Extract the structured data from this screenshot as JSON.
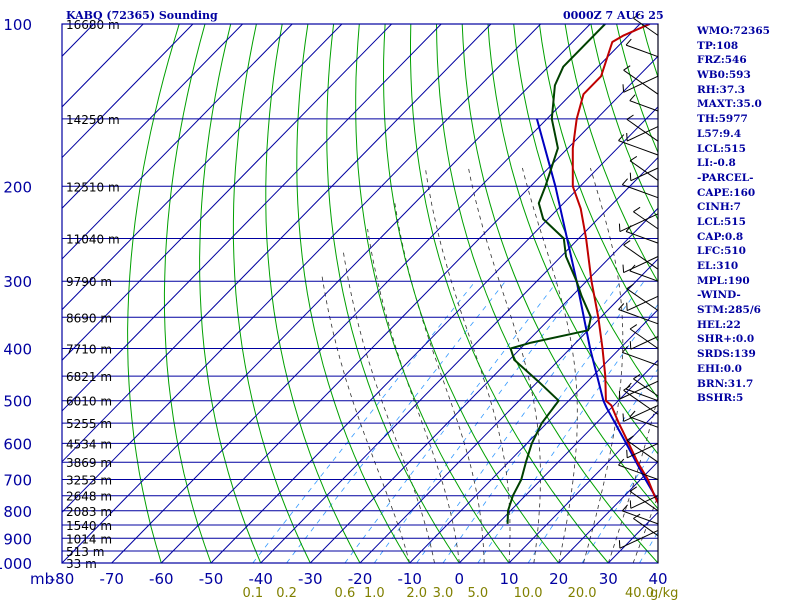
{
  "header": {
    "station": "KABQ (72365) Sounding",
    "time": "0000Z  7 AUG 25"
  },
  "sidebar": {
    "items": [
      "WMO:72365",
      "TP:108",
      "FRZ:546",
      "WB0:593",
      "RH:37.3",
      "MAXT:35.0",
      "TH:5977",
      "L57:9.4",
      "LCL:515",
      "LI:-0.8",
      "-PARCEL-",
      "CAPE:160",
      "CINH:7",
      "LCL:515",
      "CAP:0.8",
      "LFC:510",
      "EL:310",
      "MPL:190",
      "-WIND-",
      "STM:285/6",
      "HEL:22",
      "SHR+:0.0",
      "SRDS:139",
      "EHI:0.0",
      "BRN:31.7",
      "BSHR:5"
    ]
  },
  "colors": {
    "frame": "#0000a0",
    "isobar": "#0000a0",
    "isotherm": "#0000a0",
    "dry_adiabat": "#00a000",
    "moist_adiabat": "#303030",
    "mixing_ratio": "#3399ff",
    "temperature": "#c00000",
    "dewpoint": "#004000",
    "parcel": "#0000c0",
    "mixing_label": "#808000",
    "wind": "#000000"
  },
  "chart_data": {
    "type": "line",
    "title": "KABQ (72365) Sounding",
    "skew_t": true,
    "xlim": [
      -80,
      40
    ],
    "ylim": [
      1000,
      100
    ],
    "y_scale": "log",
    "x_tick_labels": [
      "-80",
      "-70",
      "-60",
      "-50",
      "-40",
      "-30",
      "-20",
      "-10",
      "0",
      "10",
      "20",
      "30",
      "40"
    ],
    "x_ticks": [
      -80,
      -70,
      -60,
      -50,
      -40,
      -30,
      -20,
      -10,
      0,
      10,
      20,
      30,
      40
    ],
    "y_axis_unit_label": "mb",
    "y_ticks": [
      100,
      200,
      300,
      400,
      500,
      600,
      700,
      800,
      900,
      1000
    ],
    "height_labels": [
      {
        "text": "16680 m",
        "p": 100
      },
      {
        "text": "14250 m",
        "p": 150
      },
      {
        "text": "12510 m",
        "p": 200
      },
      {
        "text": "11040 m",
        "p": 250
      },
      {
        "text": "9790 m",
        "p": 300
      },
      {
        "text": "8690 m",
        "p": 350
      },
      {
        "text": "7710 m",
        "p": 400
      },
      {
        "text": "6821 m",
        "p": 450
      },
      {
        "text": "6010 m",
        "p": 500
      },
      {
        "text": "5255 m",
        "p": 550
      },
      {
        "text": "4534 m",
        "p": 600
      },
      {
        "text": "3869 m",
        "p": 650
      },
      {
        "text": "3253 m",
        "p": 700
      },
      {
        "text": "2648 m",
        "p": 750
      },
      {
        "text": "2083 m",
        "p": 800
      },
      {
        "text": "1540 m",
        "p": 850
      },
      {
        "text": "1014 m",
        "p": 900
      },
      {
        "text": "513 m",
        "p": 950
      },
      {
        "text": "33 m",
        "p": 1000
      }
    ],
    "mixing_ratio_labels": [
      "0.1",
      "0.2",
      "0.6",
      "1.0",
      "2.0",
      "3.0",
      "5.0",
      "10.0",
      "20.0",
      "40.0"
    ],
    "mixing_ratio_values": [
      0.1,
      0.2,
      0.6,
      1.0,
      2.0,
      3.0,
      5.0,
      10.0,
      20.0,
      40.0
    ],
    "mixing_ratio_unit": "g/kg",
    "series": [
      {
        "key": "temperature",
        "points": [
          {
            "p": 846,
            "t": 35.0
          },
          {
            "p": 800,
            "t": 30.5
          },
          {
            "p": 750,
            "t": 26.0
          },
          {
            "p": 700,
            "t": 21.5
          },
          {
            "p": 650,
            "t": 16.0
          },
          {
            "p": 600,
            "t": 10.5
          },
          {
            "p": 550,
            "t": 4.5
          },
          {
            "p": 510,
            "t": -0.5
          },
          {
            "p": 500,
            "t": -2.5
          },
          {
            "p": 450,
            "t": -7.5
          },
          {
            "p": 400,
            "t": -13.5
          },
          {
            "p": 350,
            "t": -20.5
          },
          {
            "p": 300,
            "t": -29.0
          },
          {
            "p": 250,
            "t": -38.5
          },
          {
            "p": 220,
            "t": -45.5
          },
          {
            "p": 200,
            "t": -51.5
          },
          {
            "p": 170,
            "t": -59.0
          },
          {
            "p": 150,
            "t": -64.0
          },
          {
            "p": 135,
            "t": -67.5
          },
          {
            "p": 125,
            "t": -67.5
          },
          {
            "p": 108,
            "t": -72.0
          },
          {
            "p": 105,
            "t": -71.0
          },
          {
            "p": 100,
            "t": -68.0
          }
        ]
      },
      {
        "key": "dewpoint",
        "points": [
          {
            "p": 846,
            "t": 2.0
          },
          {
            "p": 800,
            "t": -0.5
          },
          {
            "p": 750,
            "t": -2.5
          },
          {
            "p": 700,
            "t": -4.0
          },
          {
            "p": 650,
            "t": -6.5
          },
          {
            "p": 600,
            "t": -9.0
          },
          {
            "p": 550,
            "t": -11.0
          },
          {
            "p": 500,
            "t": -12.0
          },
          {
            "p": 460,
            "t": -20.0
          },
          {
            "p": 420,
            "t": -29.0
          },
          {
            "p": 400,
            "t": -32.0
          },
          {
            "p": 390,
            "t": -29.0
          },
          {
            "p": 370,
            "t": -20.0
          },
          {
            "p": 350,
            "t": -22.0
          },
          {
            "p": 320,
            "t": -28.0
          },
          {
            "p": 300,
            "t": -32.0
          },
          {
            "p": 270,
            "t": -39.0
          },
          {
            "p": 250,
            "t": -43.0
          },
          {
            "p": 230,
            "t": -51.0
          },
          {
            "p": 215,
            "t": -55.0
          },
          {
            "p": 200,
            "t": -57.0
          },
          {
            "p": 170,
            "t": -62.0
          },
          {
            "p": 150,
            "t": -69.0
          },
          {
            "p": 130,
            "t": -75.0
          },
          {
            "p": 120,
            "t": -77.0
          },
          {
            "p": 100,
            "t": -77.0
          }
        ]
      },
      {
        "key": "parcel",
        "points": [
          {
            "p": 846,
            "t": 35.0
          },
          {
            "p": 700,
            "t": 21.0
          },
          {
            "p": 600,
            "t": 10.0
          },
          {
            "p": 515,
            "t": -1.0
          },
          {
            "p": 500,
            "t": -3.0
          },
          {
            "p": 400,
            "t": -16.0
          },
          {
            "p": 300,
            "t": -32.0
          },
          {
            "p": 200,
            "t": -55.0
          },
          {
            "p": 150,
            "t": -72.0
          }
        ]
      }
    ],
    "wind_levels_mb": [
      105,
      115,
      125,
      135,
      145,
      155,
      165,
      175,
      185,
      195,
      210,
      225,
      240,
      255,
      270,
      285,
      300,
      320,
      340,
      360,
      380,
      400,
      430,
      460,
      490,
      500,
      510,
      530,
      560,
      600,
      650,
      700,
      750,
      800,
      846,
      870,
      890
    ]
  }
}
